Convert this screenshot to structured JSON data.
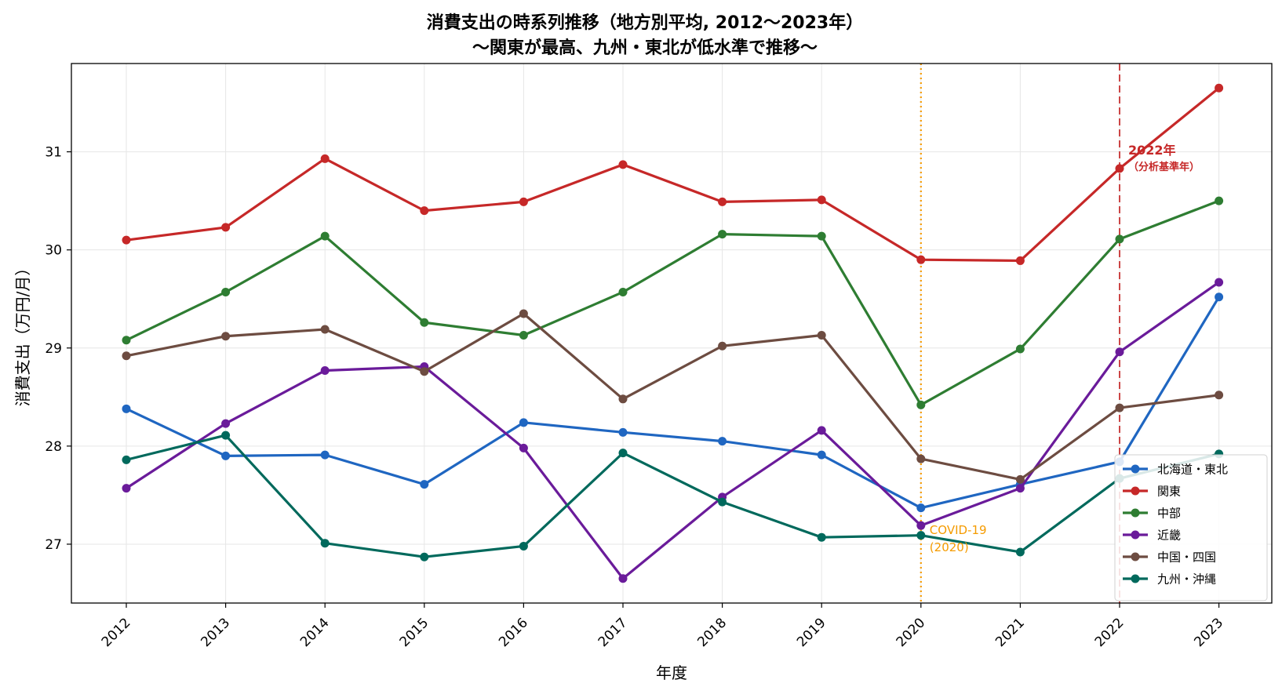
{
  "chart_data": {
    "type": "line",
    "title": "消費支出の時系列推移（地方別平均, 2012〜2023年）",
    "subtitle": "〜関東が最高、九州・東北が低水準で推移〜",
    "xlabel": "年度",
    "ylabel": "消費支出（万円/月）",
    "x": [
      "2012",
      "2013",
      "2014",
      "2015",
      "2016",
      "2017",
      "2018",
      "2019",
      "2020",
      "2021",
      "2022",
      "2023"
    ],
    "ylim": [
      26.4,
      31.9
    ],
    "yticks": [
      "27",
      "28",
      "29",
      "30",
      "31"
    ],
    "grid": true,
    "legend_position": "lower-right",
    "series": [
      {
        "name": "北海道・東北",
        "color": "#1f66c1",
        "values": [
          28.38,
          27.9,
          27.91,
          27.61,
          28.24,
          28.14,
          28.05,
          27.91,
          27.37,
          27.61,
          27.84,
          29.52
        ]
      },
      {
        "name": "関東",
        "color": "#c62828",
        "values": [
          30.1,
          30.23,
          30.93,
          30.4,
          30.49,
          30.87,
          30.49,
          30.51,
          29.9,
          29.89,
          30.83,
          31.65
        ]
      },
      {
        "name": "中部",
        "color": "#2e7d32",
        "values": [
          29.08,
          29.57,
          30.14,
          29.26,
          29.13,
          29.57,
          30.16,
          30.14,
          28.42,
          28.99,
          30.11,
          30.5
        ]
      },
      {
        "name": "近畿",
        "color": "#6a1b9a",
        "values": [
          27.57,
          28.23,
          28.77,
          28.81,
          27.98,
          26.65,
          27.48,
          28.16,
          27.19,
          27.57,
          28.96,
          29.67
        ]
      },
      {
        "name": "中国・四国",
        "color": "#6d4c41",
        "values": [
          28.92,
          29.12,
          29.19,
          28.76,
          29.35,
          28.48,
          29.02,
          29.13,
          27.87,
          27.66,
          28.39,
          28.52
        ]
      },
      {
        "name": "九州・沖縄",
        "color": "#00695c",
        "values": [
          27.86,
          28.11,
          27.01,
          26.87,
          26.98,
          27.93,
          27.43,
          27.07,
          27.09,
          26.92,
          27.67,
          27.92
        ]
      }
    ],
    "annotations": [
      {
        "x": "2020",
        "style": "dotted",
        "color": "#f59b00",
        "lines": [
          "COVID-19",
          "(2020)"
        ]
      },
      {
        "x": "2022",
        "style": "dashed",
        "color": "#c62828",
        "lines": [
          "2022年",
          "（分析基準年）"
        ]
      }
    ]
  }
}
